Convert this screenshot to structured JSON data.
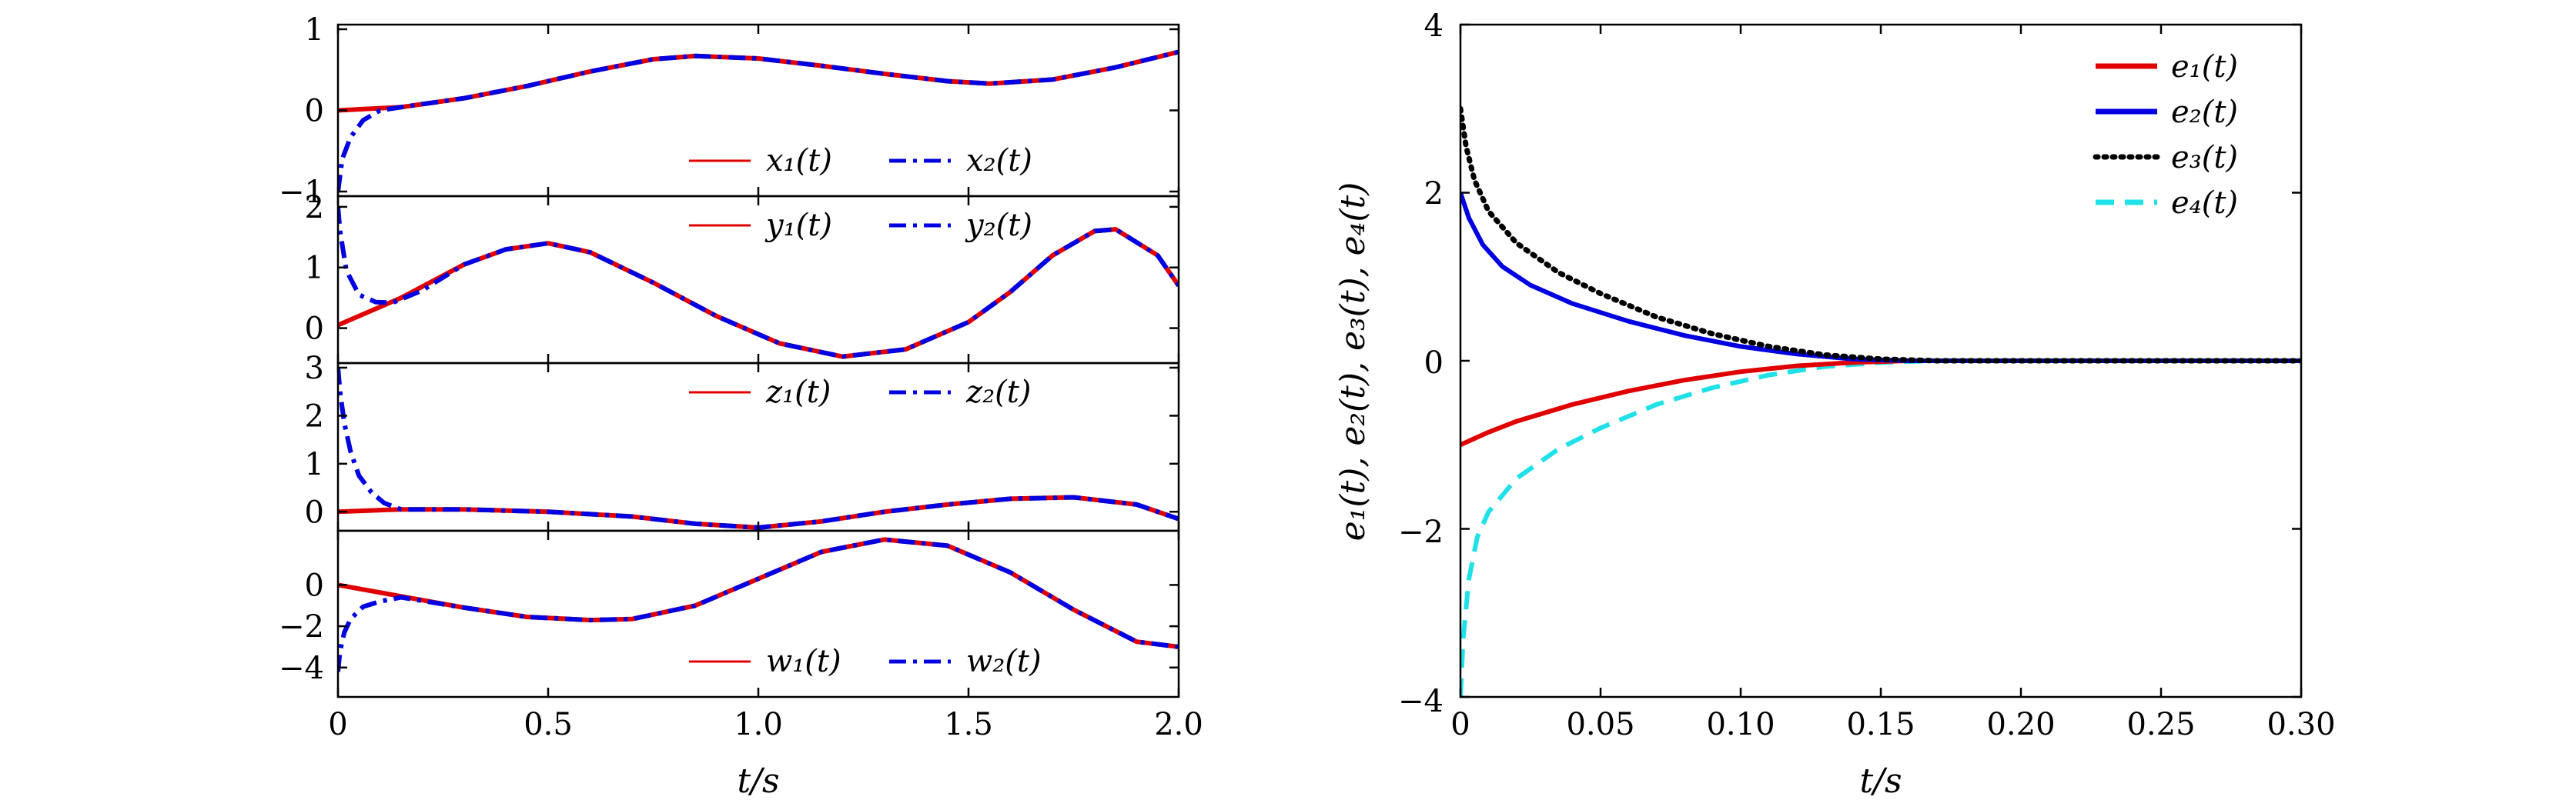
{
  "chart_data": [
    {
      "type": "line",
      "title": "",
      "xlabel": "t/s",
      "xlim": [
        0,
        2.0
      ],
      "xticks": [
        "0",
        "0.5",
        "1.0",
        "1.5",
        "2.0"
      ],
      "subplots": [
        {
          "ylabel": "",
          "ylim": [
            -1,
            1
          ],
          "yticks": [
            "−1",
            "0",
            "1"
          ],
          "legend": {
            "location": "bottom-right",
            "entries": [
              "x₁(t)",
              "x₂(t)"
            ]
          },
          "series": [
            {
              "name": "x₁(t)",
              "style": "solid",
              "color": "#e00000",
              "x": [
                0,
                0.15,
                0.3,
                0.45,
                0.6,
                0.75,
                0.85,
                1.0,
                1.15,
                1.3,
                1.45,
                1.55,
                1.7,
                1.85,
                2.0
              ],
              "y": [
                0.0,
                0.04,
                0.15,
                0.3,
                0.48,
                0.63,
                0.67,
                0.64,
                0.55,
                0.45,
                0.36,
                0.33,
                0.38,
                0.53,
                0.72
              ]
            },
            {
              "name": "x₂(t)",
              "style": "dashdot",
              "color": "#0000e0",
              "x": [
                0,
                0.01,
                0.03,
                0.06,
                0.1,
                0.15,
                0.3,
                0.45,
                0.6,
                0.75,
                0.85,
                1.0,
                1.15,
                1.3,
                1.45,
                1.55,
                1.7,
                1.85,
                2.0
              ],
              "y": [
                -1.0,
                -0.6,
                -0.33,
                -0.12,
                0.0,
                0.04,
                0.15,
                0.3,
                0.48,
                0.63,
                0.67,
                0.64,
                0.55,
                0.45,
                0.36,
                0.33,
                0.38,
                0.53,
                0.72
              ]
            }
          ]
        },
        {
          "ylabel": "",
          "ylim": [
            -0.5,
            2.1
          ],
          "yticks": [
            "0",
            "1",
            "2"
          ],
          "legend": {
            "location": "top-right",
            "entries": [
              "y₁(t)",
              "y₂(t)"
            ]
          },
          "series": [
            {
              "name": "y₁(t)",
              "style": "solid",
              "color": "#e00000",
              "x": [
                0,
                0.15,
                0.3,
                0.4,
                0.5,
                0.6,
                0.75,
                0.9,
                1.05,
                1.2,
                1.35,
                1.5,
                1.6,
                1.7,
                1.8,
                1.85,
                1.95,
                2.0
              ],
              "y": [
                0.05,
                0.5,
                1.05,
                1.3,
                1.4,
                1.25,
                0.75,
                0.2,
                -0.25,
                -0.47,
                -0.35,
                0.1,
                0.6,
                1.2,
                1.6,
                1.63,
                1.2,
                0.7
              ]
            },
            {
              "name": "y₂(t)",
              "style": "dashdot",
              "color": "#0000e0",
              "x": [
                0,
                0.005,
                0.02,
                0.05,
                0.09,
                0.13,
                0.2,
                0.3,
                0.4,
                0.5,
                0.6,
                0.75,
                0.9,
                1.05,
                1.2,
                1.35,
                1.5,
                1.6,
                1.7,
                1.8,
                1.85,
                1.95,
                2.0
              ],
              "y": [
                2.0,
                1.6,
                0.95,
                0.55,
                0.43,
                0.42,
                0.62,
                1.05,
                1.3,
                1.4,
                1.25,
                0.75,
                0.2,
                -0.25,
                -0.47,
                -0.35,
                0.1,
                0.6,
                1.2,
                1.6,
                1.63,
                1.2,
                0.7
              ]
            }
          ]
        },
        {
          "ylabel": "",
          "ylim": [
            -0.3,
            3.0
          ],
          "yticks": [
            "0",
            "1",
            "2",
            "3"
          ],
          "legend": {
            "location": "top-right",
            "entries": [
              "z₁(t)",
              "z₂(t)"
            ]
          },
          "series": [
            {
              "name": "z₁(t)",
              "style": "solid",
              "color": "#e00000",
              "x": [
                0,
                0.15,
                0.3,
                0.5,
                0.7,
                0.85,
                1.0,
                1.15,
                1.3,
                1.45,
                1.6,
                1.75,
                1.9,
                2.0
              ],
              "y": [
                0.0,
                0.05,
                0.05,
                0.0,
                -0.1,
                -0.25,
                -0.33,
                -0.2,
                0.0,
                0.15,
                0.27,
                0.3,
                0.15,
                -0.15
              ]
            },
            {
              "name": "z₂(t)",
              "style": "dashdot",
              "color": "#0000e0",
              "x": [
                0,
                0.005,
                0.015,
                0.03,
                0.05,
                0.08,
                0.11,
                0.15,
                0.3,
                0.5,
                0.7,
                0.85,
                1.0,
                1.15,
                1.3,
                1.45,
                1.6,
                1.75,
                1.9,
                2.0
              ],
              "y": [
                3.0,
                2.5,
                1.85,
                1.25,
                0.75,
                0.4,
                0.18,
                0.05,
                0.05,
                0.0,
                -0.1,
                -0.25,
                -0.33,
                -0.2,
                0.0,
                0.15,
                0.27,
                0.3,
                0.15,
                -0.15
              ]
            }
          ]
        },
        {
          "ylabel": "",
          "ylim": [
            -5.2,
            2.4
          ],
          "yticks": [
            "0",
            "−2",
            "−4"
          ],
          "legend": {
            "location": "bottom-right",
            "entries": [
              "w₁(t)",
              "w₂(t)"
            ]
          },
          "series": [
            {
              "name": "w₁(t)",
              "style": "solid",
              "color": "#e00000",
              "x": [
                0,
                0.15,
                0.3,
                0.45,
                0.6,
                0.7,
                0.85,
                1.0,
                1.15,
                1.3,
                1.45,
                1.6,
                1.75,
                1.9,
                2.0
              ],
              "y": [
                0.0,
                -0.55,
                -1.1,
                -1.55,
                -1.7,
                -1.65,
                -1.0,
                0.3,
                1.6,
                2.2,
                1.9,
                0.6,
                -1.2,
                -2.75,
                -3.0
              ]
            },
            {
              "name": "w₂(t)",
              "style": "dashdot",
              "color": "#0000e0",
              "x": [
                0,
                0.005,
                0.015,
                0.03,
                0.06,
                0.1,
                0.15,
                0.3,
                0.45,
                0.6,
                0.7,
                0.85,
                1.0,
                1.15,
                1.3,
                1.45,
                1.6,
                1.75,
                1.9,
                2.0
              ],
              "y": [
                -4.2,
                -3.2,
                -2.3,
                -1.65,
                -1.05,
                -0.8,
                -0.6,
                -1.1,
                -1.55,
                -1.7,
                -1.65,
                -1.0,
                0.3,
                1.6,
                2.2,
                1.9,
                0.6,
                -1.2,
                -2.75,
                -3.0
              ]
            }
          ]
        }
      ]
    },
    {
      "type": "line",
      "title": "",
      "xlabel": "t/s",
      "ylabel": "e₁(t), e₂(t), e₃(t), e₄(t)",
      "xlim": [
        0,
        0.3
      ],
      "ylim": [
        -4,
        4
      ],
      "xticks": [
        "0",
        "0.05",
        "0.10",
        "0.15",
        "0.20",
        "0.25",
        "0.30"
      ],
      "yticks": [
        "−4",
        "−2",
        "0",
        "2",
        "4"
      ],
      "legend": {
        "location": "top-right",
        "entries": [
          "e₁(t)",
          "e₂(t)",
          "e₃(t)",
          "e₄(t)"
        ]
      },
      "series": [
        {
          "name": "e₁(t)",
          "style": "solid",
          "color": "#e00000",
          "x": [
            0,
            0.01,
            0.02,
            0.04,
            0.06,
            0.08,
            0.1,
            0.12,
            0.14,
            0.16,
            0.2,
            0.25,
            0.3
          ],
          "y": [
            -1.0,
            -0.85,
            -0.72,
            -0.52,
            -0.36,
            -0.23,
            -0.13,
            -0.06,
            -0.02,
            0.0,
            0.0,
            0.0,
            0.0
          ]
        },
        {
          "name": "e₂(t)",
          "style": "solid",
          "color": "#0000e0",
          "x": [
            0,
            0.003,
            0.008,
            0.015,
            0.025,
            0.04,
            0.06,
            0.08,
            0.1,
            0.12,
            0.14,
            0.16,
            0.2,
            0.25,
            0.3
          ],
          "y": [
            2.0,
            1.7,
            1.38,
            1.12,
            0.9,
            0.68,
            0.47,
            0.3,
            0.17,
            0.08,
            0.02,
            0.0,
            0.0,
            0.0,
            0.0
          ]
        },
        {
          "name": "e₃(t)",
          "style": "dotted",
          "color": "#000000",
          "x": [
            0,
            0.002,
            0.005,
            0.01,
            0.02,
            0.035,
            0.05,
            0.07,
            0.09,
            0.11,
            0.13,
            0.15,
            0.17,
            0.2,
            0.25,
            0.3
          ],
          "y": [
            3.0,
            2.55,
            2.15,
            1.78,
            1.4,
            1.05,
            0.8,
            0.52,
            0.32,
            0.17,
            0.07,
            0.02,
            0.0,
            0.0,
            0.0,
            0.0
          ]
        },
        {
          "name": "e₄(t)",
          "style": "dashed",
          "color": "#20e0e8",
          "x": [
            0,
            0.001,
            0.003,
            0.006,
            0.01,
            0.02,
            0.035,
            0.05,
            0.07,
            0.09,
            0.11,
            0.13,
            0.15,
            0.17,
            0.2,
            0.25,
            0.3
          ],
          "y": [
            -4.0,
            -3.3,
            -2.6,
            -2.1,
            -1.8,
            -1.4,
            -1.05,
            -0.8,
            -0.52,
            -0.32,
            -0.17,
            -0.07,
            -0.02,
            0.0,
            0.0,
            0.0,
            0.0
          ]
        }
      ]
    }
  ]
}
